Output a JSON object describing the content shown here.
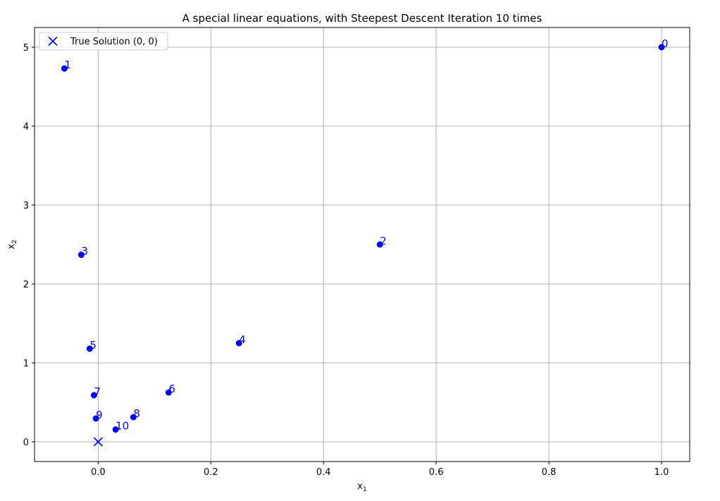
{
  "chart_data": {
    "type": "scatter",
    "title": "A special linear equations, with Steepest Descent Iteration 10 times",
    "xlabel": {
      "base": "x",
      "sub": "1"
    },
    "ylabel": {
      "base": "x",
      "sub": "2"
    },
    "xlim": [
      -0.113,
      1.05
    ],
    "ylim": [
      -0.25,
      5.25
    ],
    "xticks": [
      0.0,
      0.2,
      0.4,
      0.6,
      0.8,
      1.0
    ],
    "xtick_labels": [
      "0.0",
      "0.2",
      "0.4",
      "0.6",
      "0.8",
      "1.0"
    ],
    "yticks": [
      0,
      1,
      2,
      3,
      4,
      5
    ],
    "ytick_labels": [
      "0",
      "1",
      "2",
      "3",
      "4",
      "5"
    ],
    "grid": true,
    "legend": {
      "placement": "upper-left",
      "entries": [
        "True Solution (0, 0)"
      ]
    },
    "iterates": [
      {
        "label": "0",
        "x": 1.0,
        "y": 5.0
      },
      {
        "label": "1",
        "x": -0.06,
        "y": 4.73
      },
      {
        "label": "2",
        "x": 0.5,
        "y": 2.5
      },
      {
        "label": "3",
        "x": -0.03,
        "y": 2.37
      },
      {
        "label": "4",
        "x": 0.25,
        "y": 1.25
      },
      {
        "label": "5",
        "x": -0.015,
        "y": 1.18
      },
      {
        "label": "6",
        "x": 0.125,
        "y": 0.625
      },
      {
        "label": "7",
        "x": -0.0075,
        "y": 0.59
      },
      {
        "label": "8",
        "x": 0.0625,
        "y": 0.3125
      },
      {
        "label": "9",
        "x": -0.004,
        "y": 0.296
      },
      {
        "label": "10",
        "x": 0.031,
        "y": 0.156
      }
    ],
    "true_solution": {
      "label": "True Solution (0, 0)",
      "x": 0.0,
      "y": 0.0
    },
    "colors": {
      "points": "#0000ff",
      "labels": "#0000ff",
      "marker": "#0000ff",
      "grid": "#b0b0b0",
      "axes": "#000000",
      "legend_border": "#cccccc"
    }
  }
}
